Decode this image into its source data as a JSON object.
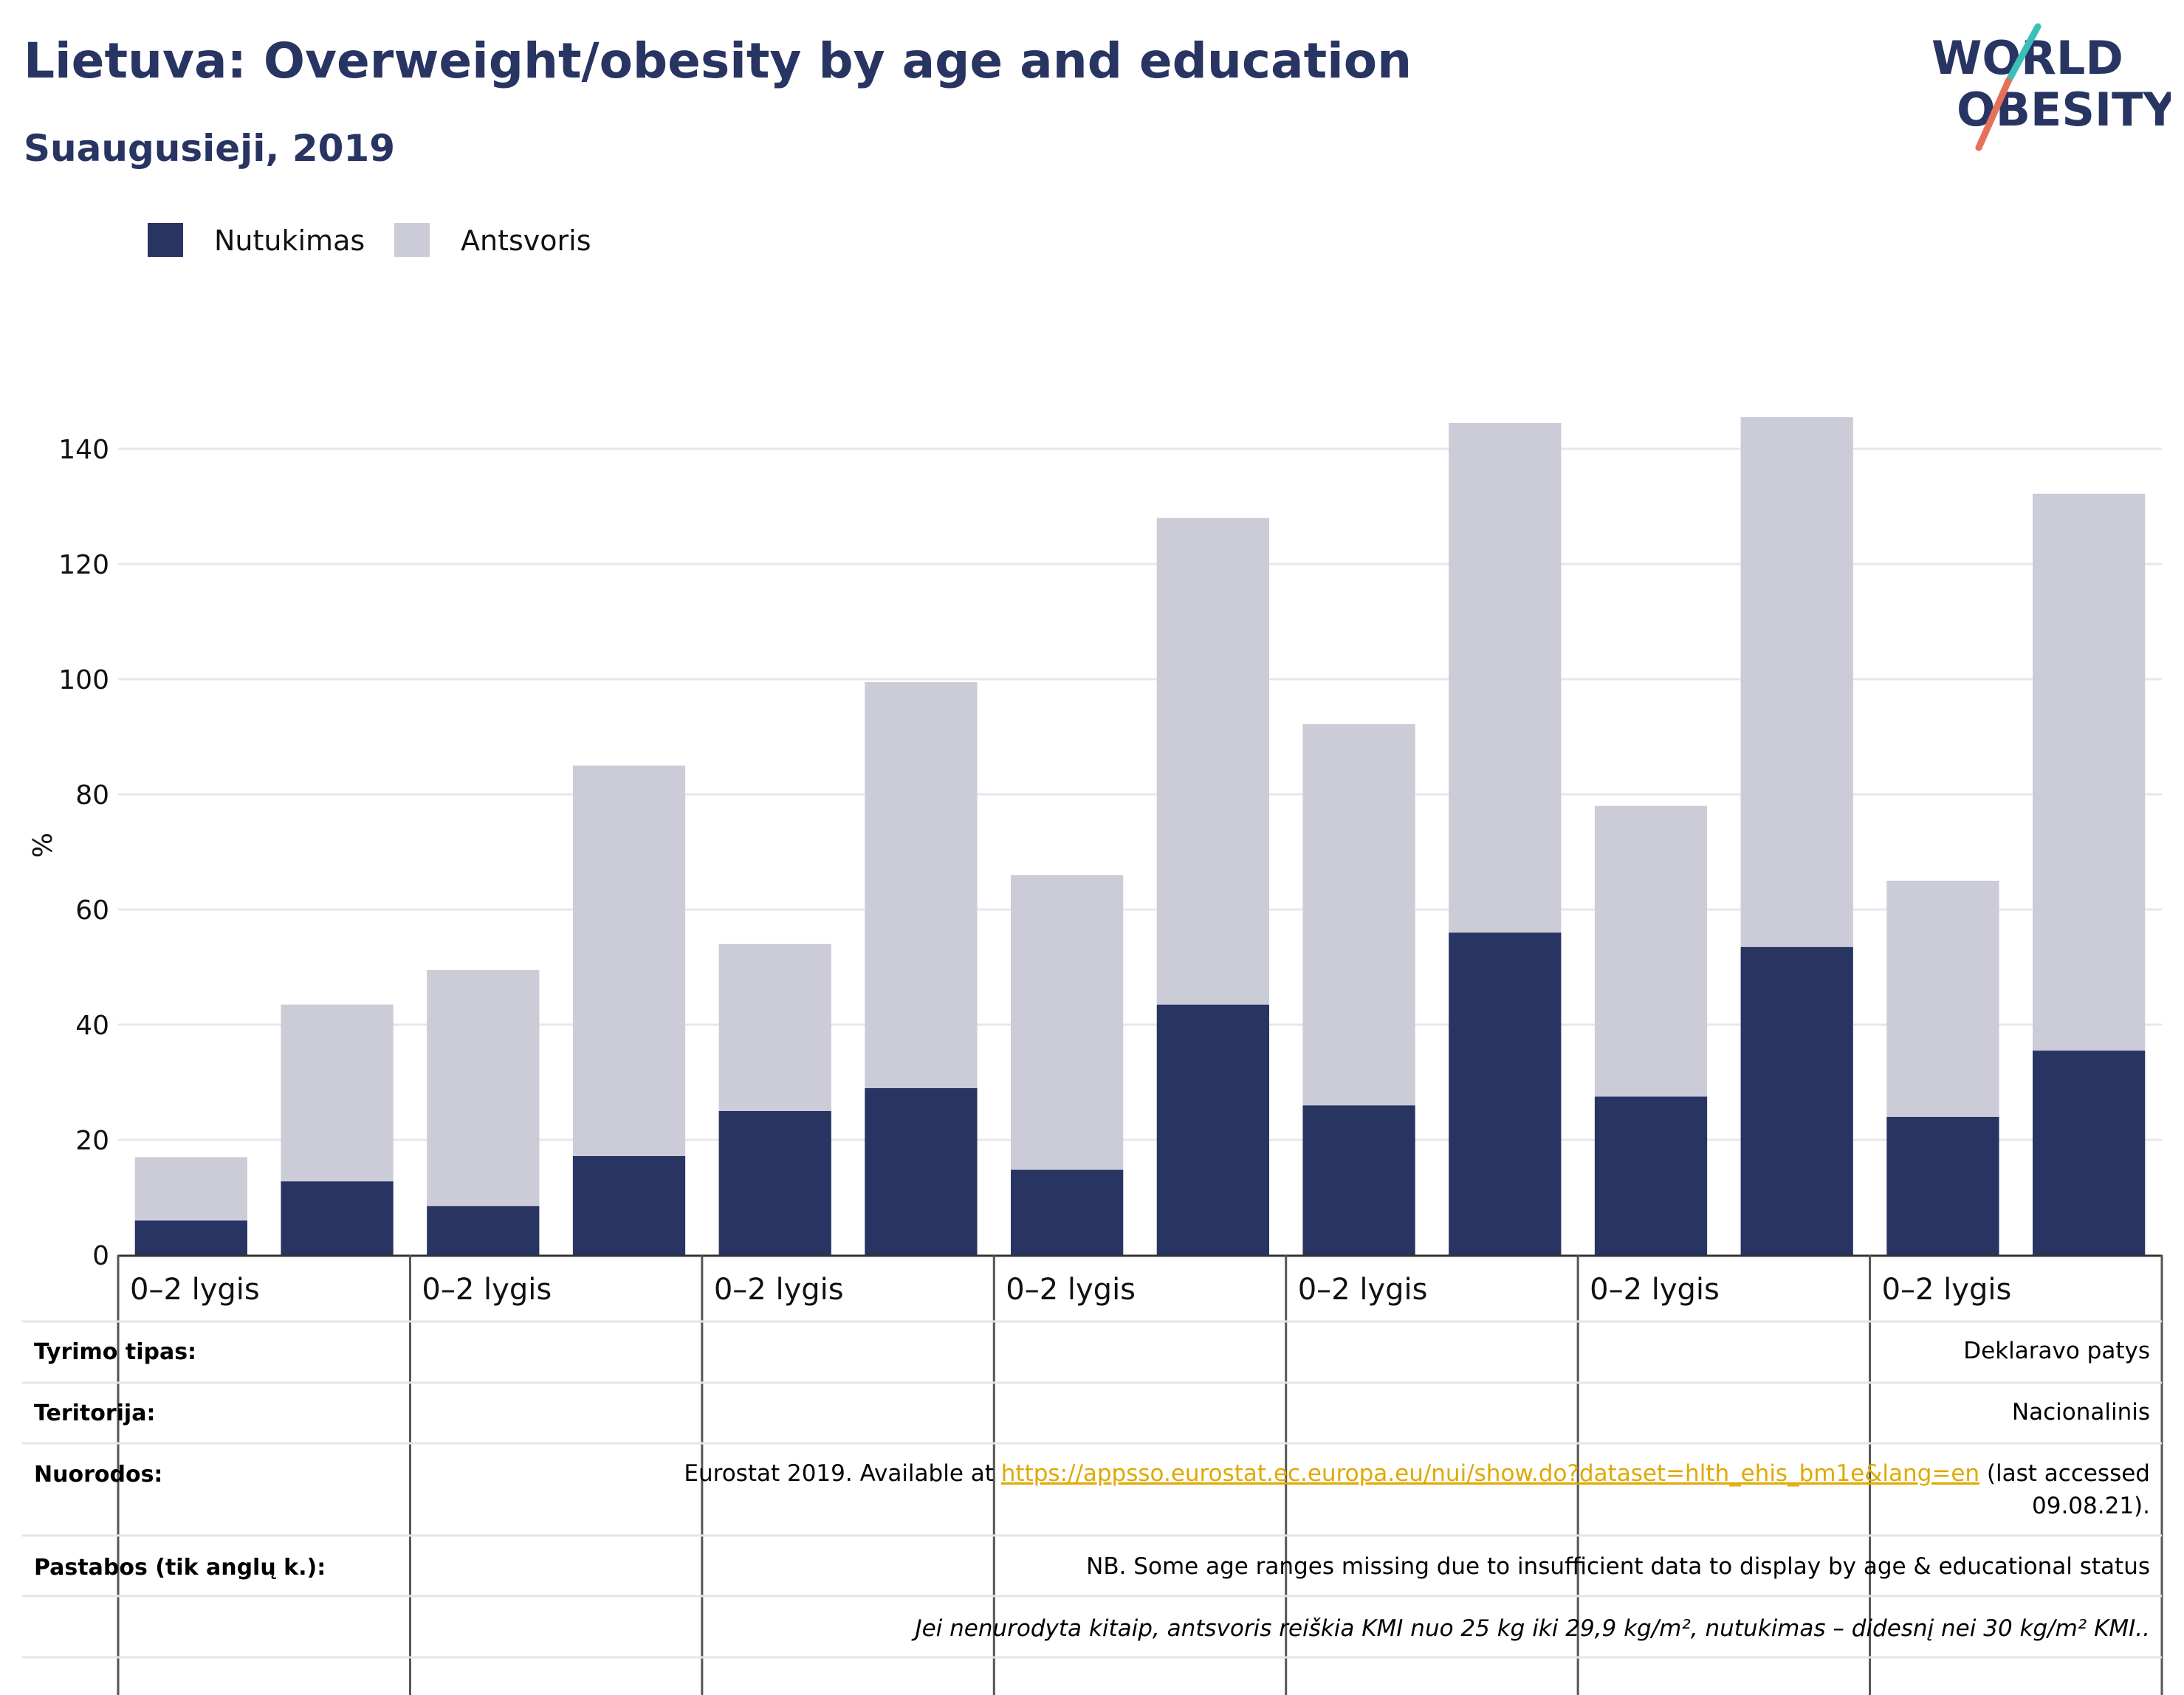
{
  "header": {
    "title": "Lietuva: Overweight/obesity by age and education",
    "subtitle": "Suaugusieji, 2019"
  },
  "logo": {
    "line1": "WORLD",
    "line2": "OBESITY",
    "accent_teal": "#3bbfb8",
    "accent_coral": "#e5705b",
    "text_color": "#283462"
  },
  "legend": [
    {
      "label": "Nutukimas",
      "color": "#283462"
    },
    {
      "label": "Antsvoris",
      "color": "#cbccd8"
    }
  ],
  "chart_data": {
    "type": "bar",
    "stacked": true,
    "ylabel": "%",
    "ylim": [
      0,
      150
    ],
    "yticks": [
      0,
      20,
      40,
      60,
      80,
      100,
      120,
      140
    ],
    "grid": true,
    "group_labels": [
      "0–2 lygis",
      "0–2 lygis",
      "0–2 lygis",
      "0–2 lygis",
      "0–2 lygis",
      "0–2 lygis",
      "0–2 lygis"
    ],
    "series": [
      {
        "name": "Nutukimas",
        "color": "#283462",
        "values": [
          6,
          12.8,
          8.5,
          17.2,
          25,
          29,
          14.8,
          43.5,
          26,
          56,
          27.5,
          53.5,
          24,
          35.5
        ]
      },
      {
        "name": "Antsvoris",
        "color": "#cbccd8",
        "values": [
          11,
          30.7,
          41,
          67.8,
          29,
          70.5,
          51.2,
          84.5,
          66.2,
          88.5,
          50.5,
          92,
          41,
          96.7
        ]
      }
    ]
  },
  "meta": {
    "survey_type_label": "Tyrimo tipas:",
    "survey_type_value": "Deklaravo patys",
    "territory_label": "Teritorija:",
    "territory_value": "Nacionalinis",
    "references_label": "Nuorodos:",
    "references_prefix": "Eurostat 2019. Available at ",
    "references_link": "https://appsso.eurostat.ec.europa.eu/nui/show.do?dataset=hlth_ehis_bm1e&lang=en",
    "references_suffix": " (last accessed",
    "references_date": "09.08.21).",
    "notes_label": "Pastabos (tik anglų k.):",
    "notes_value": "NB. Some age ranges missing due to insufficient data to display by age & educational status",
    "definition": "Jei nenurodyta kitaip, antsvoris reiškia KMI nuo 25 kg iki 29,9 kg/m², nutukimas – didesnį nei 30 kg/m² KMI.."
  }
}
